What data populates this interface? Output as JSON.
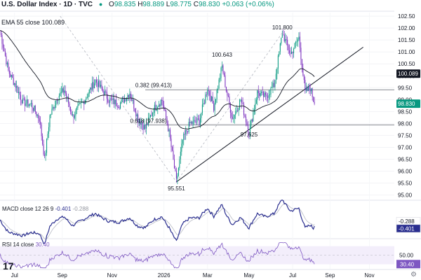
{
  "header": {
    "instrument": "U.S. Dollar Index · 1D · TVC",
    "o_label": "O",
    "o_val": "98.835",
    "h_label": "H",
    "h_val": "98.889",
    "l_label": "L",
    "l_val": "98.775",
    "c_label": "C",
    "c_val": "98.830",
    "change": "+0.063 (+0.06%)",
    "ema_label": "EMA 55 close",
    "ema_value": "100.089",
    "eye_icon": "eye-icon"
  },
  "colors": {
    "up": "#089981",
    "down": "#7b2fbe",
    "bg": "#ffffff",
    "grid": "#f0f3fa",
    "macd_line": "#2a2e8f",
    "signal_line": "#b7bac4",
    "rsi_line": "#7e57c2",
    "price_tag": "#089981",
    "ema_tag": "#131722"
  },
  "chart_data": [
    {
      "type": "candlestick",
      "title": "U.S. Dollar Index · 1D · TVC",
      "x_ticks": [
        "Jul",
        "Sep",
        "Nov",
        "2026",
        "Mar",
        "May",
        "Jul",
        "Sep",
        "Nov"
      ],
      "y_ticks": [
        "102.50",
        "102.00",
        "101.50",
        "101.00",
        "100.50",
        "100.00",
        "99.50",
        "99.00",
        "98.50",
        "98.00",
        "97.50",
        "97.00",
        "96.50",
        "96.00",
        "95.50",
        "95.00"
      ],
      "ylim": [
        94.9,
        102.65
      ],
      "series": [
        {
          "name": "EMA 55 close",
          "last": 100.089
        },
        {
          "name": "price",
          "last": 98.83
        }
      ],
      "anchors": [
        {
          "t": 0,
          "v": 101.9
        },
        {
          "t": 8,
          "v": 100.2
        },
        {
          "t": 15,
          "v": 99.6
        },
        {
          "t": 22,
          "v": 98.9
        },
        {
          "t": 30,
          "v": 98.8
        },
        {
          "t": 38,
          "v": 98.2
        },
        {
          "t": 43,
          "v": 96.5
        },
        {
          "t": 48,
          "v": 98.3
        },
        {
          "t": 55,
          "v": 99.1
        },
        {
          "t": 62,
          "v": 99.4
        },
        {
          "t": 70,
          "v": 98.3
        },
        {
          "t": 80,
          "v": 98.9
        },
        {
          "t": 92,
          "v": 99.8
        },
        {
          "t": 105,
          "v": 99.0
        },
        {
          "t": 115,
          "v": 98.8
        },
        {
          "t": 125,
          "v": 99.3
        },
        {
          "t": 133,
          "v": 98.2
        },
        {
          "t": 140,
          "v": 97.8
        },
        {
          "t": 148,
          "v": 98.6
        },
        {
          "t": 156,
          "v": 99.0
        },
        {
          "t": 163,
          "v": 97.6
        },
        {
          "t": 170,
          "v": 95.55
        },
        {
          "t": 176,
          "v": 97.3
        },
        {
          "t": 183,
          "v": 98.0
        },
        {
          "t": 192,
          "v": 98.1
        },
        {
          "t": 200,
          "v": 99.5
        },
        {
          "t": 206,
          "v": 98.7
        },
        {
          "t": 214,
          "v": 100.4
        },
        {
          "t": 218,
          "v": 99.4
        },
        {
          "t": 224,
          "v": 98.2
        },
        {
          "t": 232,
          "v": 99.0
        },
        {
          "t": 240,
          "v": 97.63
        },
        {
          "t": 248,
          "v": 99.3
        },
        {
          "t": 256,
          "v": 99.1
        },
        {
          "t": 264,
          "v": 99.6
        },
        {
          "t": 272,
          "v": 101.8
        },
        {
          "t": 280,
          "v": 100.9
        },
        {
          "t": 288,
          "v": 101.6
        },
        {
          "t": 294,
          "v": 99.3
        },
        {
          "t": 299,
          "v": 99.5
        },
        {
          "t": 303,
          "v": 98.83
        }
      ],
      "annotations": [
        {
          "text": "101.800",
          "t": 272,
          "v": 101.95
        },
        {
          "text": "100.643",
          "t": 214,
          "v": 100.8
        },
        {
          "text": "0.382 (99.413)",
          "t": 148,
          "v": 99.52
        },
        {
          "text": "0.618 (97.938)",
          "t": 143,
          "v": 98.02
        },
        {
          "text": "97.625",
          "t": 240,
          "v": 97.45
        },
        {
          "text": "95.551",
          "t": 170,
          "v": 95.2
        }
      ],
      "fib_levels": [
        {
          "label": "0.382",
          "value": 99.413
        },
        {
          "label": "0.618",
          "value": 97.938
        }
      ],
      "trendline": [
        {
          "t": 170,
          "v": 95.55
        },
        {
          "t": 350,
          "v": 101.2
        }
      ],
      "fib_lines": [
        [
          {
            "t": 58,
            "v": 102.5
          },
          {
            "t": 170,
            "v": 95.55
          }
        ],
        [
          {
            "t": 170,
            "v": 95.55
          },
          {
            "t": 272,
            "v": 101.8
          }
        ]
      ],
      "price_tags": [
        {
          "text": "100.089",
          "value": 100.089,
          "kind": "ema"
        },
        {
          "text": "98.830",
          "value": 98.83,
          "kind": "price"
        }
      ]
    },
    {
      "type": "line",
      "title": "MACD close 12 26 9",
      "values_label": "-0.401",
      "values_label2": "-0.288",
      "series": [
        {
          "name": "MACD",
          "last": -0.401
        },
        {
          "name": "Signal",
          "last": -0.288
        }
      ],
      "tags": [
        {
          "text": "-0.288",
          "kind": "signal"
        },
        {
          "text": "-0.401",
          "kind": "macd"
        }
      ]
    },
    {
      "type": "line",
      "title": "RSI 14 close",
      "values_label": "30.40",
      "y_ticks": [
        "50.00"
      ],
      "series": [
        {
          "name": "RSI",
          "last": 30.4
        }
      ],
      "tags": [
        {
          "text": "30.40",
          "kind": "rsi"
        }
      ]
    }
  ],
  "watermark": "17",
  "settings_icon": "gear-icon"
}
